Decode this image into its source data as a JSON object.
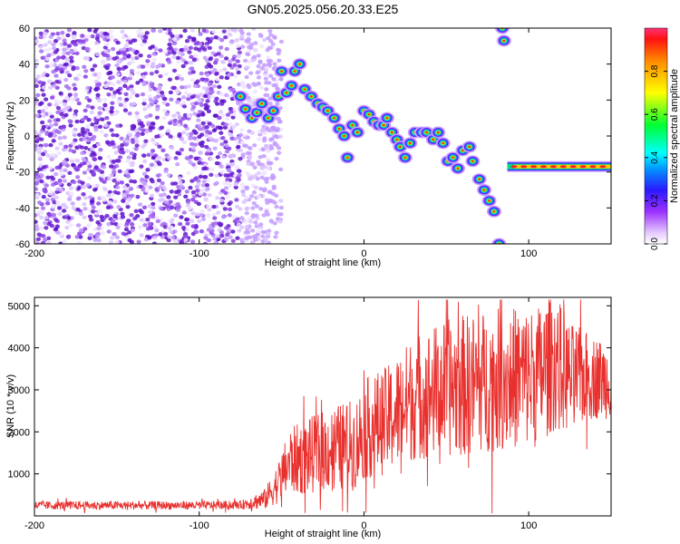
{
  "title": "GN05.2025.056.20.33.E25",
  "colors": {
    "snr_line": "#e8312e",
    "scatter_noise": "#7a2bd6",
    "background": "#ffffff"
  },
  "chart_data": [
    {
      "type": "heatmap",
      "xlabel": "Height of straight line (km)",
      "ylabel": "Frequency (Hz)",
      "xlim": [
        -200,
        150
      ],
      "ylim": [
        -60,
        60
      ],
      "xticks": [
        "-200",
        "-100",
        "0",
        "100"
      ],
      "yticks": [
        "60",
        "40",
        "20",
        "0",
        "-20",
        "-40",
        "-60"
      ],
      "colorbar": {
        "label": "Normalized spectral amplitude",
        "range": [
          0,
          1
        ],
        "ticks": [
          "0.0",
          "0.2",
          "0.4",
          "0.6",
          "0.8"
        ],
        "colormap": "rainbow"
      },
      "noise_region_x": [
        -200,
        -50
      ],
      "track": [
        {
          "x": -75,
          "y": 22
        },
        {
          "x": -72,
          "y": 15
        },
        {
          "x": -68,
          "y": 10
        },
        {
          "x": -65,
          "y": 13
        },
        {
          "x": -62,
          "y": 18
        },
        {
          "x": -58,
          "y": 10
        },
        {
          "x": -55,
          "y": 14
        },
        {
          "x": -52,
          "y": 22
        },
        {
          "x": -50,
          "y": 36
        },
        {
          "x": -47,
          "y": 24
        },
        {
          "x": -44,
          "y": 28
        },
        {
          "x": -42,
          "y": 36
        },
        {
          "x": -39,
          "y": 40
        },
        {
          "x": -36,
          "y": 26
        },
        {
          "x": -32,
          "y": 22
        },
        {
          "x": -28,
          "y": 18
        },
        {
          "x": -25,
          "y": 16
        },
        {
          "x": -22,
          "y": 14
        },
        {
          "x": -18,
          "y": 10
        },
        {
          "x": -15,
          "y": 4
        },
        {
          "x": -12,
          "y": 0
        },
        {
          "x": -10,
          "y": -12
        },
        {
          "x": -7,
          "y": 6
        },
        {
          "x": -4,
          "y": 2
        },
        {
          "x": 0,
          "y": 14
        },
        {
          "x": 3,
          "y": 12
        },
        {
          "x": 6,
          "y": 8
        },
        {
          "x": 9,
          "y": 6
        },
        {
          "x": 12,
          "y": 6
        },
        {
          "x": 14,
          "y": 10
        },
        {
          "x": 17,
          "y": 2
        },
        {
          "x": 20,
          "y": -2
        },
        {
          "x": 22,
          "y": -6
        },
        {
          "x": 25,
          "y": -12
        },
        {
          "x": 28,
          "y": -4
        },
        {
          "x": 31,
          "y": 2
        },
        {
          "x": 35,
          "y": 2
        },
        {
          "x": 38,
          "y": 2
        },
        {
          "x": 42,
          "y": -2
        },
        {
          "x": 45,
          "y": 2
        },
        {
          "x": 48,
          "y": -4
        },
        {
          "x": 51,
          "y": -14
        },
        {
          "x": 54,
          "y": -12
        },
        {
          "x": 57,
          "y": -18
        },
        {
          "x": 60,
          "y": -8
        },
        {
          "x": 64,
          "y": -6
        },
        {
          "x": 66,
          "y": -14
        },
        {
          "x": 70,
          "y": -24
        },
        {
          "x": 73,
          "y": -30
        },
        {
          "x": 76,
          "y": -36
        },
        {
          "x": 79,
          "y": -42
        },
        {
          "x": 82,
          "y": -60
        },
        {
          "x": 84,
          "y": 60
        },
        {
          "x": 85,
          "y": 53
        }
      ],
      "tail": {
        "x_start": 87,
        "x_end": 150,
        "y": -17
      }
    },
    {
      "type": "line",
      "xlabel": "Height of straight line (km)",
      "ylabel": "SNR (10 * v/v)",
      "xlim": [
        -200,
        150
      ],
      "ylim": [
        0,
        5200
      ],
      "xticks": [
        "-200",
        "-100",
        "0",
        "100"
      ],
      "yticks": [
        "5000",
        "4000",
        "3000",
        "2000",
        "1000"
      ],
      "series": [
        {
          "x": [
            -200,
            -150,
            -100,
            -75,
            -60,
            -52,
            -45,
            -35,
            -20,
            -5,
            0,
            15,
            30,
            45,
            60,
            75,
            90,
            105,
            115,
            125,
            140,
            150
          ],
          "values": [
            250,
            250,
            250,
            260,
            400,
            800,
            1300,
            1400,
            1600,
            1700,
            2050,
            2300,
            2800,
            3000,
            3100,
            3200,
            3300,
            3300,
            3700,
            3300,
            3300,
            3200
          ],
          "amplitude": [
            100,
            100,
            100,
            100,
            250,
            500,
            800,
            900,
            1000,
            1100,
            1200,
            1300,
            1500,
            1600,
            1700,
            1700,
            1700,
            1700,
            1700,
            1300,
            1000,
            900
          ]
        }
      ]
    }
  ]
}
